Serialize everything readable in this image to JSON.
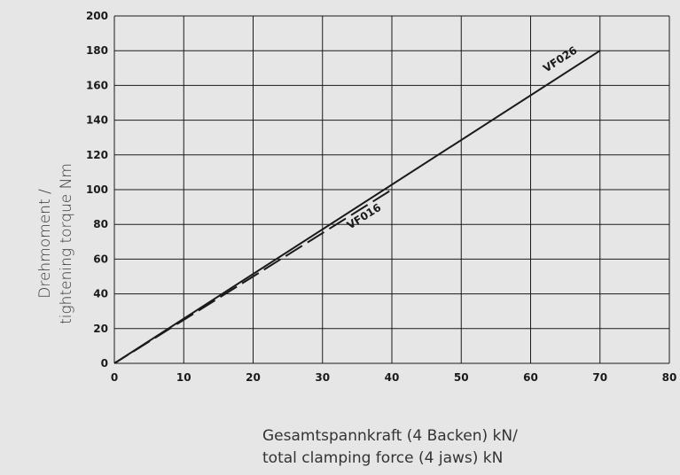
{
  "chart_data": {
    "type": "line",
    "xlabel_lines": [
      "Gesamtspannkraft (4 Backen) kN/",
      "total clamping force (4 jaws) kN"
    ],
    "ylabel_lines": [
      "Drehmoment /",
      "tightening torque Nm"
    ],
    "xlim": [
      0,
      80
    ],
    "ylim": [
      0,
      200
    ],
    "x_ticks": [
      "0",
      "10",
      "20",
      "30",
      "40",
      "50",
      "60",
      "70",
      "80"
    ],
    "y_ticks": [
      "0",
      "20",
      "40",
      "60",
      "80",
      "100",
      "120",
      "140",
      "160",
      "180",
      "200"
    ],
    "grid": true,
    "series": [
      {
        "name": "VF026",
        "style": "solid",
        "x": [
          0,
          70
        ],
        "y": [
          0,
          180
        ]
      },
      {
        "name": "VF016",
        "style": "dashed",
        "x": [
          0,
          40
        ],
        "y": [
          0,
          100
        ]
      }
    ]
  },
  "colors": {
    "background": "#e6e6e6",
    "lines": "#1a1a1a"
  }
}
